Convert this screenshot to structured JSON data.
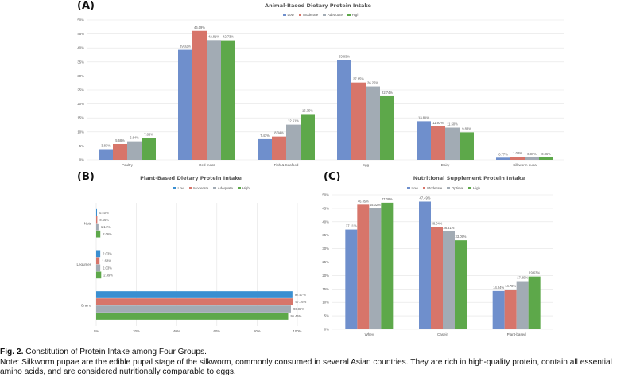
{
  "caption": {
    "fig_label": "Fig. 2.",
    "title": " Constitution of Protein Intake among Four Groups.",
    "note": "Note: Silkworm pupae are the edible pupal stage of the silkworm, commonly consumed in several Asian countries. They are rich in high-quality protein, contain all essential amino acids, and are considered nutritionally comparable to eggs."
  },
  "colors": {
    "low": "#6f8fcc",
    "moderate": "#d7756a",
    "adequate": "#a2abb4",
    "high": "#5da84a",
    "low_b": "#3a8fd1"
  },
  "chart_data": [
    {
      "panel": "(A)",
      "type": "bar",
      "title": "Animal-Based Dietary Protein Intake",
      "categories": [
        "Poultry",
        "Red meat",
        "Fish & Seafood",
        "Egg",
        "Dairy",
        "Silkworm pupa"
      ],
      "series": [
        {
          "name": "Low",
          "values": [
            3.83,
            39.32,
            7.41,
            35.63,
            13.81,
            0.77
          ],
          "labels": [
            "3.83%",
            "39.32%",
            "7.41%",
            "35.63%",
            "13.81%",
            "0.77%"
          ]
        },
        {
          "name": "Moderate",
          "values": [
            5.68,
            46.09,
            8.34,
            27.65,
            11.93,
            1.08
          ],
          "labels": [
            "5.68%",
            "46.09%",
            "8.34%",
            "27.65%",
            "11.93%",
            "1.08%"
          ]
        },
        {
          "name": "Adequate",
          "values": [
            6.64,
            42.81,
            12.61,
            26.26,
            11.5,
            0.87
          ],
          "labels": [
            "6.64%",
            "42.81%",
            "12.61%",
            "26.26%",
            "11.50%",
            "0.87%"
          ]
        },
        {
          "name": "High",
          "values": [
            7.86,
            42.73,
            16.35,
            22.74,
            9.83,
            0.86
          ],
          "labels": [
            "7.86%",
            "42.73%",
            "16.35%",
            "22.74%",
            "9.83%",
            "0.86%"
          ]
        }
      ],
      "ylim": [
        0,
        50
      ],
      "yticks": [
        "0%",
        "5%",
        "10%",
        "15%",
        "20%",
        "25%",
        "30%",
        "35%",
        "40%",
        "45%",
        "50%"
      ],
      "grid": true,
      "legend": "top-center"
    },
    {
      "panel": "(B)",
      "type": "bar",
      "orientation": "horizontal",
      "title": "Plant-Based Dietary Protein Intake",
      "categories": [
        "Nuts",
        "Legumes",
        "Grains"
      ],
      "series": [
        {
          "name": "Low",
          "values": [
            0.4,
            2.03,
            97.57
          ],
          "labels": [
            "0.40%",
            "2.03%",
            "97.57%"
          ]
        },
        {
          "name": "Moderate",
          "values": [
            0.55,
            1.68,
            97.76
          ],
          "labels": [
            "0.55%",
            "1.68%",
            "97.76%"
          ]
        },
        {
          "name": "Adequate",
          "values": [
            1.14,
            2.03,
            96.83
          ],
          "labels": [
            "1.14%",
            "2.03%",
            "96.83%"
          ]
        },
        {
          "name": "High",
          "values": [
            2.06,
            2.49,
            95.45
          ],
          "labels": [
            "2.06%",
            "2.49%",
            "95.45%"
          ]
        }
      ],
      "xlim": [
        0,
        100
      ],
      "xticks": [
        "0%",
        "20%",
        "40%",
        "60%",
        "80%",
        "100%"
      ],
      "grid": true,
      "legend": "top-center"
    },
    {
      "panel": "(C)",
      "type": "bar",
      "title": "Nutritional Supplement Protein Intake",
      "categories": [
        "Whey",
        "Casein",
        "Plant-based"
      ],
      "series": [
        {
          "name": "Low",
          "values": [
            37.11,
            47.49,
            14.24
          ],
          "labels": [
            "37.11%",
            "47.49%",
            "14.24%"
          ]
        },
        {
          "name": "Moderate",
          "values": [
            46.35,
            38.04,
            14.78
          ],
          "labels": [
            "46.35%",
            "38.04%",
            "14.78%"
          ]
        },
        {
          "name": "Optimal",
          "values": [
            45.02,
            36.41,
            17.89
          ],
          "labels": [
            "45.02%",
            "36.41%",
            "17.89%"
          ]
        },
        {
          "name": "High",
          "values": [
            47.08,
            33.09,
            19.63
          ],
          "labels": [
            "47.08%",
            "33.09%",
            "19.63%"
          ]
        }
      ],
      "ylim": [
        0,
        50
      ],
      "yticks": [
        "0%",
        "5%",
        "10%",
        "15%",
        "20%",
        "25%",
        "30%",
        "35%",
        "40%",
        "45%",
        "50%"
      ],
      "grid": true,
      "legend": "top-center"
    }
  ]
}
